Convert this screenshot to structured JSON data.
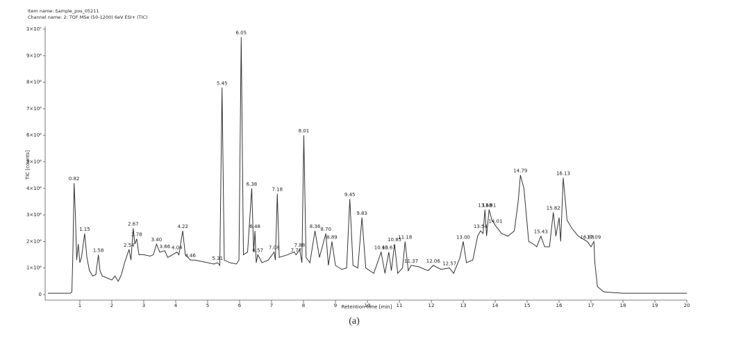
{
  "chart_data": {
    "type": "line",
    "header": [
      "Item name: Sample_pos_05211",
      "Channel name: 2: TOF MSe (50-1200) 6eV ESI+ (TIC)"
    ],
    "xlabel": "Retention time [min]",
    "ylabel": "TIC [counts]",
    "caption": "(a)",
    "color": "#333333",
    "xlim": [
      0,
      20
    ],
    "xticks": [
      1,
      2,
      3,
      4,
      5,
      6,
      7,
      8,
      9,
      10,
      11,
      12,
      13,
      14,
      15,
      16,
      17,
      18,
      19,
      20
    ],
    "ylim": [
      0,
      10000000
    ],
    "yticks": [
      0,
      {
        "value": 1000000,
        "label": "1×10⁶"
      },
      {
        "value": 2000000,
        "label": "2×10⁶"
      },
      {
        "value": 3000000,
        "label": "3×10⁶"
      },
      {
        "value": 4000000,
        "label": "4×10⁶"
      },
      {
        "value": 5000000,
        "label": "5×10⁶"
      },
      {
        "value": 6000000,
        "label": "6×10⁶"
      },
      {
        "value": 7000000,
        "label": "7×10⁶"
      },
      {
        "value": 8000000,
        "label": "8×10⁶"
      },
      {
        "value": 9000000,
        "label": "9×10⁶"
      },
      {
        "value": 10000000,
        "label": "1×10⁷"
      }
    ],
    "x": [
      0,
      0.7,
      0.75,
      0.78,
      0.82,
      0.86,
      0.9,
      0.95,
      1.0,
      1.05,
      1.15,
      1.22,
      1.3,
      1.4,
      1.5,
      1.58,
      1.63,
      1.7,
      1.9,
      2.0,
      2.1,
      2.2,
      2.3,
      2.4,
      2.54,
      2.6,
      2.67,
      2.72,
      2.78,
      2.85,
      3.0,
      3.2,
      3.3,
      3.4,
      3.5,
      3.66,
      3.75,
      3.9,
      4.04,
      4.1,
      4.22,
      4.3,
      4.46,
      4.6,
      4.8,
      5.0,
      5.2,
      5.31,
      5.38,
      5.45,
      5.52,
      5.7,
      5.9,
      5.98,
      6.05,
      6.12,
      6.25,
      6.38,
      6.44,
      6.48,
      6.52,
      6.57,
      6.7,
      6.9,
      7.08,
      7.12,
      7.18,
      7.24,
      7.5,
      7.7,
      7.77,
      7.88,
      7.95,
      8.01,
      8.08,
      8.2,
      8.36,
      8.5,
      8.7,
      8.78,
      8.89,
      9.0,
      9.2,
      9.35,
      9.45,
      9.55,
      9.7,
      9.83,
      9.95,
      10.2,
      10.43,
      10.55,
      10.67,
      10.75,
      10.85,
      10.95,
      11.1,
      11.18,
      11.28,
      11.37,
      11.6,
      11.9,
      12.06,
      12.3,
      12.57,
      12.7,
      12.9,
      13.0,
      13.1,
      13.3,
      13.45,
      13.54,
      13.62,
      13.68,
      13.73,
      13.81,
      13.9,
      14.01,
      14.2,
      14.4,
      14.6,
      14.72,
      14.79,
      14.9,
      15.05,
      15.2,
      15.3,
      15.43,
      15.55,
      15.7,
      15.82,
      15.9,
      16.0,
      16.05,
      16.13,
      16.25,
      16.4,
      16.6,
      16.88,
      17.0,
      17.09,
      17.12,
      17.2,
      17.4,
      18,
      20
    ],
    "values": [
      50000,
      50000,
      100000,
      1500000,
      4200000,
      3000000,
      1300000,
      1900000,
      1200000,
      1400000,
      2300000,
      1400000,
      900000,
      700000,
      750000,
      1500000,
      900000,
      700000,
      600000,
      550000,
      700000,
      500000,
      750000,
      1200000,
      1700000,
      1300000,
      2500000,
      1900000,
      2100000,
      1500000,
      1500000,
      1450000,
      1500000,
      1900000,
      1600000,
      1650000,
      1400000,
      1500000,
      1600000,
      1500000,
      2400000,
      1500000,
      1300000,
      1300000,
      1250000,
      1200000,
      1150000,
      1200000,
      1100000,
      7800000,
      1300000,
      1200000,
      1150000,
      1300000,
      9700000,
      1500000,
      1600000,
      4000000,
      1600000,
      2400000,
      1200000,
      1500000,
      1200000,
      1300000,
      1600000,
      1300000,
      3800000,
      1400000,
      1500000,
      1600000,
      1500000,
      1700000,
      1200000,
      6000000,
      1400000,
      1200000,
      2400000,
      1400000,
      2300000,
      1100000,
      2000000,
      1100000,
      950000,
      1000000,
      3600000,
      1100000,
      1000000,
      2900000,
      1000000,
      800000,
      1600000,
      800000,
      1600000,
      900000,
      1900000,
      800000,
      1000000,
      2000000,
      900000,
      1100000,
      1050000,
      900000,
      1100000,
      950000,
      1000000,
      800000,
      1400000,
      2000000,
      1200000,
      1300000,
      2200000,
      2400000,
      2300000,
      3200000,
      2200000,
      3200000,
      2800000,
      2600000,
      2300000,
      2200000,
      2400000,
      3500000,
      4500000,
      4000000,
      2000000,
      1900000,
      1800000,
      2200000,
      1800000,
      1800000,
      3100000,
      2200000,
      2900000,
      2000000,
      4400000,
      2800000,
      2500000,
      2200000,
      2000000,
      1800000,
      2000000,
      1200000,
      300000,
      100000,
      50000,
      50000
    ],
    "annotations": [
      {
        "x": 0.82,
        "label": "0.82"
      },
      {
        "x": 1.15,
        "label": "1.15"
      },
      {
        "x": 1.58,
        "label": "1.58"
      },
      {
        "x": 2.54,
        "label": "2.54"
      },
      {
        "x": 2.67,
        "label": "2.67"
      },
      {
        "x": 2.78,
        "label": "2.78"
      },
      {
        "x": 3.4,
        "label": "3.40"
      },
      {
        "x": 3.66,
        "label": "3.66"
      },
      {
        "x": 4.04,
        "label": "4.04"
      },
      {
        "x": 4.22,
        "label": "4.22"
      },
      {
        "x": 4.46,
        "label": "4.46"
      },
      {
        "x": 5.31,
        "label": "5.31"
      },
      {
        "x": 5.45,
        "label": "5.45"
      },
      {
        "x": 6.05,
        "label": "6.05"
      },
      {
        "x": 6.38,
        "label": "6.38"
      },
      {
        "x": 6.48,
        "label": "6.48"
      },
      {
        "x": 6.57,
        "label": "6.57"
      },
      {
        "x": 7.08,
        "label": "7.08"
      },
      {
        "x": 7.18,
        "label": "7.18"
      },
      {
        "x": 7.77,
        "label": "7.77"
      },
      {
        "x": 7.88,
        "label": "7.88"
      },
      {
        "x": 8.01,
        "label": "8.01"
      },
      {
        "x": 8.36,
        "label": "8.36"
      },
      {
        "x": 8.7,
        "label": "8.70"
      },
      {
        "x": 8.89,
        "label": "8.89"
      },
      {
        "x": 9.45,
        "label": "9.45"
      },
      {
        "x": 9.83,
        "label": "9.83"
      },
      {
        "x": 10.43,
        "label": "10.43"
      },
      {
        "x": 10.67,
        "label": "10.67"
      },
      {
        "x": 10.85,
        "label": "10.85"
      },
      {
        "x": 11.18,
        "label": "11.18"
      },
      {
        "x": 11.37,
        "label": "11.37"
      },
      {
        "x": 12.06,
        "label": "12.06"
      },
      {
        "x": 12.57,
        "label": "12.57"
      },
      {
        "x": 13.0,
        "label": "13.00"
      },
      {
        "x": 13.54,
        "label": "13.54"
      },
      {
        "x": 13.68,
        "label": "13.68"
      },
      {
        "x": 13.81,
        "label": "13.81"
      },
      {
        "x": 14.01,
        "label": "14.01"
      },
      {
        "x": 14.79,
        "label": "14.79"
      },
      {
        "x": 15.43,
        "label": "15.43"
      },
      {
        "x": 15.82,
        "label": "15.82"
      },
      {
        "x": 16.13,
        "label": "16.13"
      },
      {
        "x": 16.88,
        "label": "16.88"
      },
      {
        "x": 17.09,
        "label": "17.09"
      }
    ]
  }
}
